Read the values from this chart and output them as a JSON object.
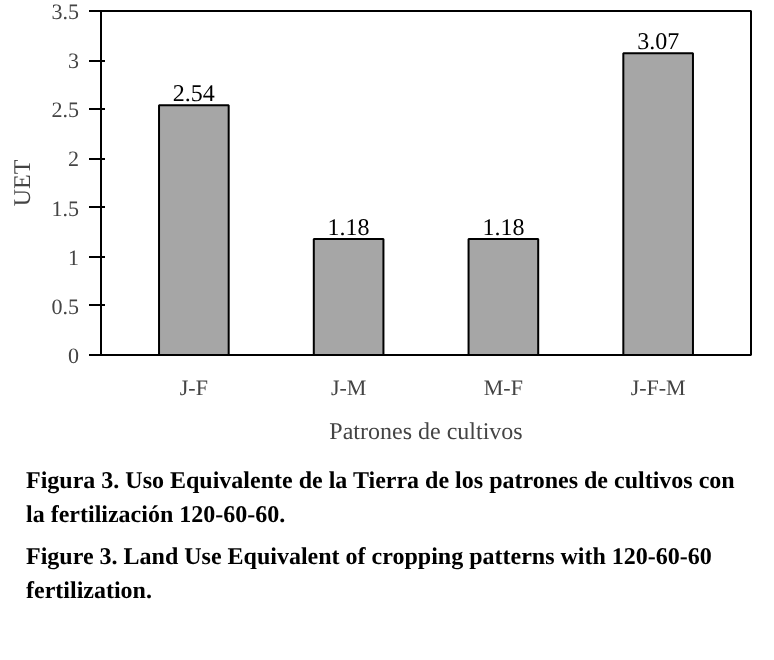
{
  "chart_data": {
    "type": "bar",
    "categories": [
      "J-F",
      "J-M",
      "M-F",
      "J-F-M"
    ],
    "values": [
      2.54,
      1.18,
      1.18,
      3.07
    ],
    "color": "#a6a6a6",
    "data_labels": true,
    "ylabel": "UET",
    "xlabel": "Patrones de cultivos",
    "ylim": [
      0,
      3.5
    ],
    "yticks": [
      0,
      0.5,
      1,
      1.5,
      2,
      2.5,
      3,
      3.5
    ],
    "annotations": [
      "Figura 3. Uso Equivalente de la Tierra de los patrones de cultivos con la fertilización 120-60-60.",
      "Figure 3. Land Use Equivalent of cropping patterns with 120-60-60 fertilization."
    ]
  }
}
